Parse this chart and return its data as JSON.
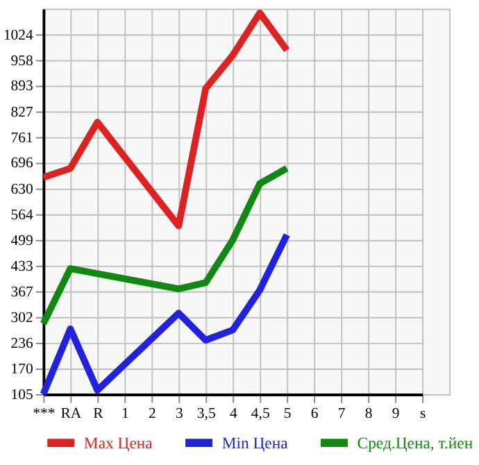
{
  "chart_data": {
    "type": "line",
    "categories": [
      "***",
      "RA",
      "R",
      "1",
      "2",
      "3",
      "3,5",
      "4",
      "4,5",
      "5",
      "6",
      "7",
      "8",
      "9",
      "s"
    ],
    "series": [
      {
        "name": "Max Цена",
        "color": "#dd2222",
        "values": [
          659,
          682,
          800,
          null,
          null,
          535,
          886,
          971,
          1079,
          984,
          null,
          null,
          null,
          null,
          null
        ]
      },
      {
        "name": "Min Цена",
        "color": "#2222dd",
        "values": [
          105,
          272,
          115,
          null,
          null,
          312,
          243,
          269,
          371,
          512,
          null,
          null,
          null,
          null,
          null
        ]
      },
      {
        "name": "Сред.Цена, т.йен",
        "color": "#118811",
        "values": [
          285,
          426,
          null,
          null,
          null,
          374,
          390,
          499,
          643,
          682,
          null,
          null,
          null,
          null,
          null
        ]
      }
    ],
    "ylim": [
      105,
      1090
    ],
    "yticks": [
      105,
      170,
      236,
      302,
      367,
      433,
      499,
      564,
      630,
      696,
      761,
      827,
      893,
      958,
      1024
    ],
    "grid": true,
    "legend": "bottom",
    "marker": "none",
    "line_style": "solid"
  }
}
